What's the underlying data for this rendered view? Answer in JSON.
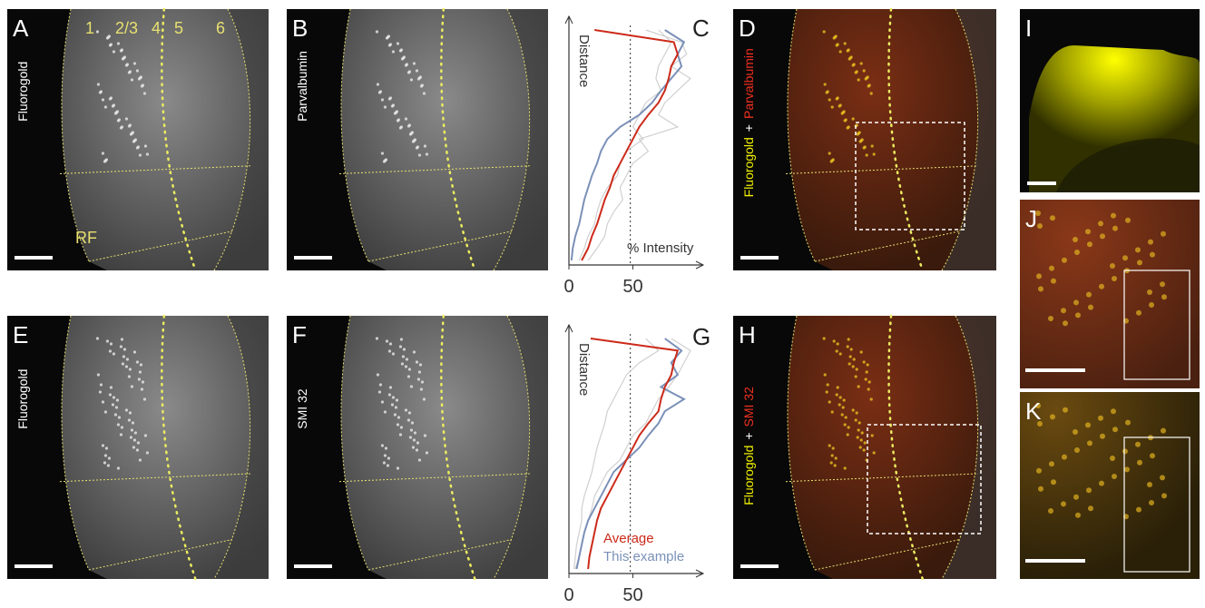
{
  "panels": [
    {
      "letter": "A",
      "stain": "Fluorogold",
      "layers": [
        "1",
        "2/3",
        "4",
        "5",
        "6"
      ],
      "region": "RF"
    },
    {
      "letter": "B",
      "stain": "Parvalbumin"
    },
    {
      "letter": "D",
      "stain": "Fluorogold",
      "joiner": "+",
      "counterstain": "Parvalbumin"
    },
    {
      "letter": "E",
      "stain": "Fluorogold"
    },
    {
      "letter": "F",
      "stain": "SMI 32"
    },
    {
      "letter": "H",
      "stain": "Fluorogold",
      "joiner": "+",
      "counterstain": "SMI 32"
    },
    {
      "letter": "I"
    },
    {
      "letter": "J"
    },
    {
      "letter": "K"
    }
  ],
  "profiles": [
    {
      "type": "line",
      "letter": "C",
      "y_label": "Distance",
      "x_label": "% Intensity",
      "xlim": [
        0,
        105
      ],
      "xticks": [
        0,
        50
      ],
      "threshold": 48,
      "series": [
        {
          "color": "#d0d0d0",
          "values": [
            60,
            88,
            92,
            80,
            95,
            85,
            75,
            70,
            85,
            55,
            62,
            50,
            45,
            40,
            42,
            35,
            30,
            28,
            22,
            15
          ]
        },
        {
          "color": "#d0d0d0",
          "values": [
            70,
            80,
            75,
            70,
            68,
            72,
            60,
            55,
            50,
            58,
            45,
            40,
            38,
            30,
            25,
            22,
            20,
            15,
            12,
            8
          ]
        },
        {
          "color": "#7b90b8",
          "values": [
            75,
            90,
            85,
            88,
            80,
            72,
            65,
            55,
            40,
            30,
            25,
            22,
            18,
            15,
            12,
            10,
            8,
            5,
            3,
            2
          ]
        },
        {
          "color": "#cc2a1a",
          "values": [
            20,
            82,
            85,
            80,
            78,
            75,
            70,
            62,
            55,
            50,
            45,
            40,
            35,
            32,
            28,
            25,
            22,
            18,
            15,
            10
          ]
        }
      ]
    },
    {
      "type": "line",
      "letter": "G",
      "y_label": "Distance",
      "xlim": [
        0,
        105
      ],
      "xticks": [
        0,
        50
      ],
      "threshold": 48,
      "series": [
        {
          "color": "#d0d0d0",
          "values": [
            80,
            95,
            90,
            85,
            78,
            70,
            65,
            60,
            50,
            45,
            40,
            30,
            25,
            20,
            18,
            15,
            12,
            10,
            8,
            5
          ]
        },
        {
          "color": "#d0d0d0",
          "values": [
            60,
            70,
            55,
            45,
            40,
            35,
            30,
            28,
            25,
            22,
            20,
            18,
            15,
            12,
            10,
            10,
            8,
            6,
            5,
            4
          ]
        },
        {
          "name": "This example",
          "color": "#7b90b8",
          "values": [
            75,
            88,
            80,
            85,
            72,
            90,
            75,
            70,
            62,
            55,
            45,
            35,
            30,
            25,
            20,
            15,
            12,
            10,
            8,
            6
          ]
        },
        {
          "name": "Average",
          "color": "#cc2a1a",
          "values": [
            17,
            85,
            82,
            80,
            75,
            72,
            70,
            62,
            55,
            50,
            45,
            40,
            35,
            30,
            25,
            22,
            20,
            18,
            16,
            15
          ]
        }
      ]
    }
  ]
}
